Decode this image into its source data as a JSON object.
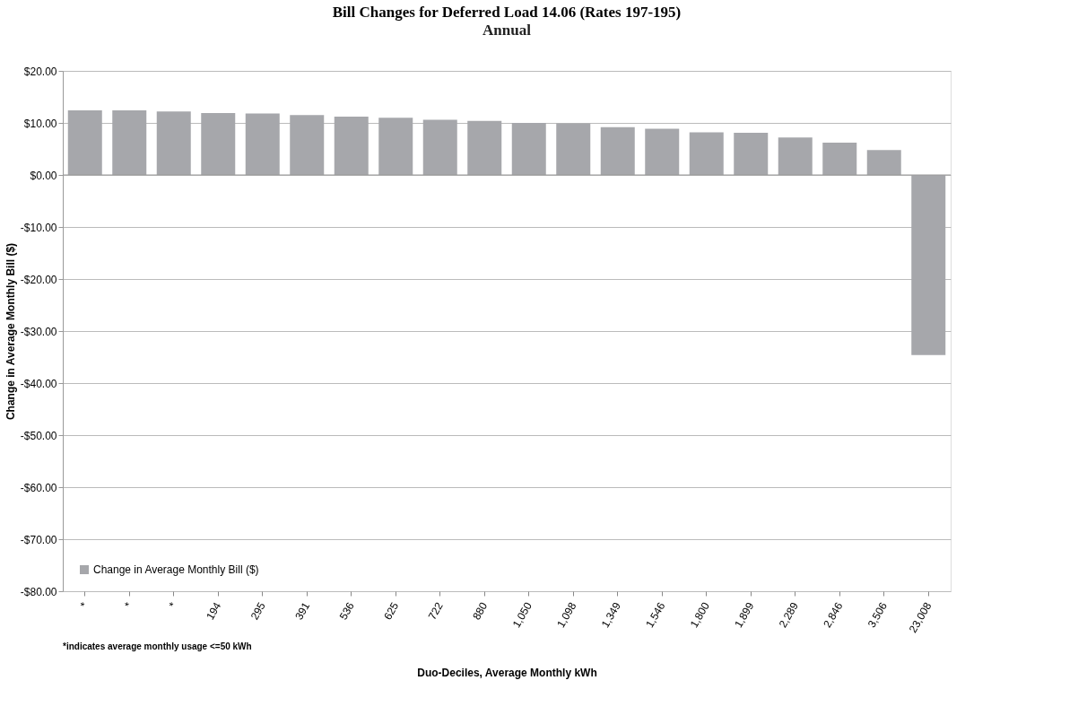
{
  "chart_data": {
    "type": "bar",
    "title": "Bill Changes for Deferred Load 14.06 (Rates 197-195)",
    "subtitle": "Annual",
    "xlabel": "Duo-Deciles, Average Monthly kWh",
    "ylabel": "Change in Average Monthly Bill ($)",
    "categories": [
      "*",
      "*",
      "*",
      "194",
      "295",
      "391",
      "536",
      "625",
      "722",
      "880",
      "1,050",
      "1,098",
      "1,349",
      "1,546",
      "1,800",
      "1,899",
      "2,289",
      "2,846",
      "3,506",
      "23,008"
    ],
    "series": [
      {
        "name": "Change in Average Monthly Bill ($)",
        "color": "#a6a7ab",
        "values": [
          12.4,
          12.4,
          12.2,
          11.9,
          11.8,
          11.5,
          11.2,
          11.0,
          10.6,
          10.4,
          10.0,
          9.9,
          9.2,
          8.9,
          8.2,
          8.1,
          7.2,
          6.2,
          4.8,
          -34.6
        ]
      }
    ],
    "ylim": [
      -80,
      20
    ],
    "yticks": [
      {
        "value": -80,
        "label": "-$80.00"
      },
      {
        "value": -70,
        "label": "-$70.00"
      },
      {
        "value": -60,
        "label": "-$60.00"
      },
      {
        "value": -50,
        "label": "-$50.00"
      },
      {
        "value": -40,
        "label": "-$40.00"
      },
      {
        "value": -30,
        "label": "-$30.00"
      },
      {
        "value": -20,
        "label": "-$20.00"
      },
      {
        "value": -10,
        "label": "-$10.00"
      },
      {
        "value": 0,
        "label": "$0.00"
      },
      {
        "value": 10,
        "label": "$10.00"
      },
      {
        "value": 20,
        "label": "$20.00"
      }
    ],
    "grid": "y",
    "legend": "bottom left",
    "annotations": [
      "*indicates average monthly usage <=50 kWh"
    ]
  }
}
